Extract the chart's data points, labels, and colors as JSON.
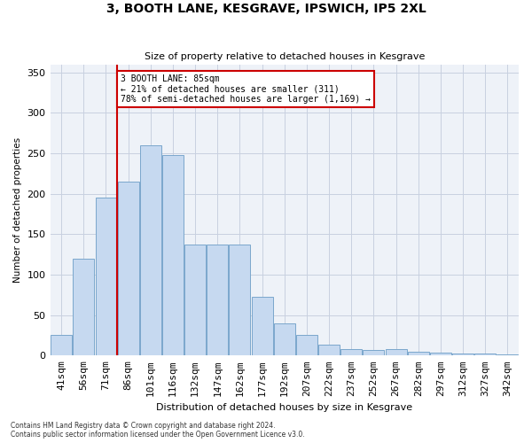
{
  "title": "3, BOOTH LANE, KESGRAVE, IPSWICH, IP5 2XL",
  "subtitle": "Size of property relative to detached houses in Kesgrave",
  "xlabel": "Distribution of detached houses by size in Kesgrave",
  "ylabel": "Number of detached properties",
  "categories": [
    "41sqm",
    "56sqm",
    "71sqm",
    "86sqm",
    "101sqm",
    "116sqm",
    "132sqm",
    "147sqm",
    "162sqm",
    "177sqm",
    "192sqm",
    "207sqm",
    "222sqm",
    "237sqm",
    "252sqm",
    "267sqm",
    "282sqm",
    "297sqm",
    "312sqm",
    "327sqm",
    "342sqm"
  ],
  "values": [
    25,
    120,
    195,
    215,
    260,
    248,
    137,
    137,
    137,
    73,
    40,
    25,
    14,
    8,
    7,
    8,
    5,
    4,
    2,
    2,
    1
  ],
  "bar_color": "#c6d9f0",
  "bar_edge_color": "#7ba7cc",
  "vline_color": "#cc0000",
  "annotation_text": "3 BOOTH LANE: 85sqm\n← 21% of detached houses are smaller (311)\n78% of semi-detached houses are larger (1,169) →",
  "annotation_box_color": "#ffffff",
  "annotation_box_edge": "#cc0000",
  "ylim": [
    0,
    360
  ],
  "yticks": [
    0,
    50,
    100,
    150,
    200,
    250,
    300,
    350
  ],
  "grid_color": "#c8d0e0",
  "background_color": "#eef2f8",
  "footer_line1": "Contains HM Land Registry data © Crown copyright and database right 2024.",
  "footer_line2": "Contains public sector information licensed under the Open Government Licence v3.0."
}
